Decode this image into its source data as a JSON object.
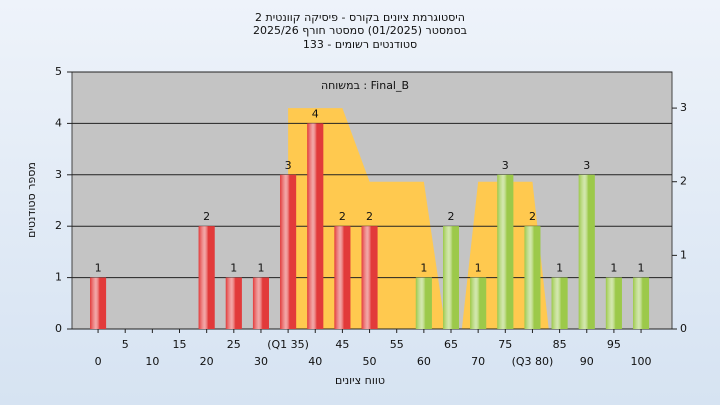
{
  "chart_data": {
    "type": "bar",
    "title": "היסטוגרמת ציונים בקורס - פיסיקה קוונטית 2",
    "subtitle": "בסמסטר  (01/2025)  סמסטר חורף 2025/26",
    "subtitle2": "סטודנטים רשומים - 133",
    "annotation": "במשוחה : Final_B",
    "x_label": "טווח ציונים",
    "y_label": "מספר סטודנטים",
    "x": [
      0,
      5,
      10,
      15,
      20,
      25,
      30,
      35,
      40,
      45,
      50,
      55,
      60,
      65,
      70,
      75,
      80,
      85,
      90,
      95,
      100
    ],
    "values": [
      1,
      0,
      0,
      0,
      2,
      1,
      1,
      3,
      4,
      2,
      2,
      0,
      1,
      2,
      1,
      3,
      2,
      1,
      3,
      1,
      1
    ],
    "colors": [
      "#e23a3a",
      "#e23a3a",
      "#e23a3a",
      "#e23a3a",
      "#e23a3a",
      "#e23a3a",
      "#e23a3a",
      "#e23a3a",
      "#e23a3a",
      "#e23a3a",
      "#e23a3a",
      "#e23a3a",
      "#9cc94a",
      "#9cc94a",
      "#9cc94a",
      "#9cc94a",
      "#9cc94a",
      "#9cc94a",
      "#9cc94a",
      "#9cc94a",
      "#9cc94a"
    ],
    "area": {
      "x": [
        35,
        35,
        45,
        50,
        60,
        64,
        67,
        70,
        80,
        83
      ],
      "values": [
        0,
        3,
        3,
        2,
        2,
        0,
        0,
        2,
        2,
        0
      ],
      "axis": "y2",
      "color": "#ffc94f"
    },
    "xlim": [
      -4.8,
      105.7
    ],
    "xticks": [
      0,
      5,
      10,
      15,
      20,
      25,
      30,
      {
        "value": 35,
        "label": "(Q1 35)"
      },
      40,
      45,
      50,
      55,
      60,
      65,
      70,
      75,
      {
        "value": 80,
        "label": "(Q3 80)"
      },
      85,
      90,
      95,
      100
    ],
    "ylim": [
      0,
      5
    ],
    "yticks": [
      0,
      1,
      2,
      3,
      4,
      5
    ],
    "y2lim": [
      0,
      3.49
    ],
    "y2ticks": [
      0,
      1,
      2,
      3
    ],
    "grid": true
  }
}
